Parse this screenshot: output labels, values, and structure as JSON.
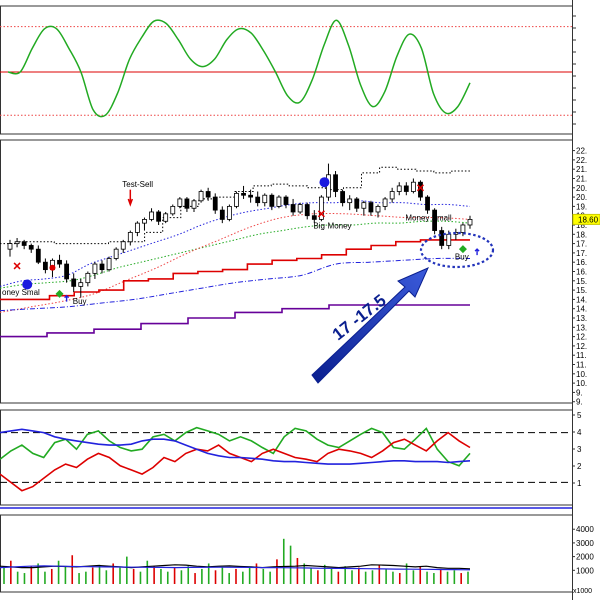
{
  "chart_data": [
    {
      "panel": "oscillator",
      "type": "line",
      "series": [
        {
          "values": [
            50,
            50,
            72,
            90,
            90,
            72,
            50,
            15,
            10,
            30,
            62,
            82,
            97,
            95,
            80,
            62,
            55,
            62,
            80,
            90,
            86,
            70,
            50,
            28,
            22,
            42,
            75,
            98,
            75,
            38,
            18,
            32,
            65,
            85,
            72,
            30,
            12,
            18,
            40
          ],
          "color": "#22aa22"
        }
      ],
      "levels": {
        "upper": 92,
        "middle": 50,
        "lower": 10
      },
      "colors": {
        "upper": "#ee4444",
        "middle": "#dd0000",
        "lower": "#ee4444"
      }
    },
    {
      "panel": "price",
      "type": "candlestick",
      "y_ticks": [
        "22.",
        "22.",
        "21.",
        "21.",
        "20.",
        "20.",
        "19.",
        "19.",
        "18.",
        "18.",
        "17.",
        "17.",
        "16.",
        "16.",
        "15.",
        "15.",
        "14.",
        "14.",
        "13.",
        "13.",
        "12.",
        "12.",
        "11.",
        "11.",
        "10.",
        "10.",
        "9.",
        "9."
      ],
      "last_price_label": "18.60",
      "last_price": 18.6,
      "candles": [
        [
          17.0,
          17.5,
          16.6,
          17.3
        ],
        [
          17.3,
          17.6,
          17.1,
          17.4
        ],
        [
          17.4,
          17.5,
          17.0,
          17.2
        ],
        [
          17.2,
          17.3,
          16.8,
          17.0
        ],
        [
          17.0,
          17.2,
          16.2,
          16.3
        ],
        [
          16.3,
          16.5,
          15.7,
          15.9
        ],
        [
          15.9,
          16.5,
          15.5,
          16.4
        ],
        [
          16.4,
          16.7,
          16.0,
          16.2
        ],
        [
          16.2,
          16.4,
          15.2,
          15.4
        ],
        [
          15.4,
          15.7,
          14.7,
          15.0
        ],
        [
          15.0,
          15.4,
          14.4,
          15.2
        ],
        [
          15.2,
          15.8,
          15.0,
          15.7
        ],
        [
          15.7,
          16.3,
          15.4,
          16.2
        ],
        [
          16.2,
          16.4,
          15.7,
          15.9
        ],
        [
          15.9,
          16.6,
          15.8,
          16.5
        ],
        [
          16.5,
          17.1,
          16.4,
          17.0
        ],
        [
          17.0,
          17.5,
          16.8,
          17.4
        ],
        [
          17.4,
          18.0,
          17.2,
          17.9
        ],
        [
          17.9,
          18.5,
          17.7,
          18.4
        ],
        [
          18.4,
          18.7,
          18.0,
          18.6
        ],
        [
          18.6,
          19.2,
          18.5,
          19.0
        ],
        [
          19.0,
          19.1,
          18.3,
          18.5
        ],
        [
          18.5,
          19.0,
          18.4,
          18.9
        ],
        [
          18.9,
          19.4,
          18.8,
          19.3
        ],
        [
          19.3,
          19.8,
          19.2,
          19.7
        ],
        [
          19.7,
          19.8,
          19.0,
          19.2
        ],
        [
          19.2,
          19.7,
          19.0,
          19.6
        ],
        [
          19.6,
          20.2,
          19.5,
          20.1
        ],
        [
          20.1,
          20.3,
          19.6,
          19.8
        ],
        [
          19.8,
          20.0,
          18.9,
          19.1
        ],
        [
          19.1,
          19.3,
          18.4,
          18.6
        ],
        [
          18.6,
          19.4,
          18.5,
          19.3
        ],
        [
          19.3,
          20.1,
          19.2,
          20.0
        ],
        [
          20.0,
          20.4,
          19.7,
          19.9
        ],
        [
          19.9,
          20.2,
          19.5,
          19.8
        ],
        [
          19.8,
          20.1,
          19.3,
          19.5
        ],
        [
          19.5,
          20.0,
          19.3,
          19.9
        ],
        [
          19.9,
          20.0,
          19.1,
          19.3
        ],
        [
          19.3,
          19.9,
          19.2,
          19.8
        ],
        [
          19.8,
          19.9,
          19.2,
          19.4
        ],
        [
          19.4,
          19.7,
          18.8,
          19.0
        ],
        [
          19.0,
          19.5,
          18.9,
          19.4
        ],
        [
          19.4,
          19.5,
          18.6,
          18.8
        ],
        [
          18.8,
          19.1,
          18.4,
          18.6
        ],
        [
          18.6,
          19.9,
          18.5,
          19.8
        ],
        [
          19.8,
          21.6,
          19.6,
          21.0
        ],
        [
          21.0,
          21.2,
          19.8,
          20.1
        ],
        [
          20.1,
          20.2,
          19.3,
          19.5
        ],
        [
          19.5,
          19.9,
          19.1,
          19.7
        ],
        [
          19.7,
          19.8,
          19.0,
          19.2
        ],
        [
          19.2,
          19.6,
          18.8,
          19.5
        ],
        [
          19.5,
          19.6,
          18.8,
          19.0
        ],
        [
          19.0,
          19.4,
          18.7,
          19.3
        ],
        [
          19.3,
          19.8,
          19.1,
          19.7
        ],
        [
          19.7,
          20.3,
          19.5,
          20.1
        ],
        [
          20.1,
          20.6,
          19.9,
          20.4
        ],
        [
          20.4,
          20.6,
          19.9,
          20.1
        ],
        [
          20.1,
          20.8,
          20.0,
          20.6
        ],
        [
          20.6,
          20.7,
          19.6,
          19.8
        ],
        [
          19.8,
          19.9,
          18.9,
          19.1
        ],
        [
          19.1,
          19.2,
          17.8,
          18.0
        ],
        [
          18.0,
          18.2,
          17.0,
          17.2
        ],
        [
          17.2,
          18.0,
          17.0,
          17.8
        ],
        [
          17.8,
          18.1,
          17.5,
          17.9
        ],
        [
          17.9,
          18.4,
          17.7,
          18.3
        ],
        [
          18.3,
          18.8,
          18.1,
          18.6
        ]
      ],
      "overlays": [
        {
          "name": "upper_band",
          "style": "dotted",
          "color": "#000000",
          "values": [
            17.3,
            17.4,
            17.4,
            17.3,
            17.3,
            17.3,
            17.4,
            17.4,
            17.9,
            18.7,
            19.3,
            19.7,
            19.8,
            20.1,
            20.4,
            20.5,
            20.4,
            20.3,
            20.2,
            20.3,
            21.1,
            21.4,
            21.3,
            21.2,
            21.1,
            21.2,
            21.3
          ]
        },
        {
          "name": "blue_ma",
          "style": "dotted",
          "color": "#2222dd",
          "values": [
            15.0,
            15.3,
            15.4,
            15.6,
            16.2,
            16.6,
            17.0,
            17.4,
            17.8,
            18.3,
            18.7,
            19.0,
            19.2,
            19.4,
            19.5,
            19.5,
            19.6,
            19.5,
            19.5,
            19.4,
            19.4,
            19.3
          ]
        },
        {
          "name": "green_ma",
          "style": "dotted",
          "color": "#22aa22",
          "values": [
            14.9,
            15.1,
            15.2,
            15.3,
            15.6,
            16.0,
            16.3,
            16.6,
            16.9,
            17.2,
            17.5,
            17.8,
            18.0,
            18.2,
            18.3,
            18.3,
            18.4,
            18.4,
            18.5,
            18.5,
            18.4
          ]
        },
        {
          "name": "red_dotted",
          "style": "dotted",
          "color": "#ee4444",
          "values": [
            13.6,
            13.9,
            14.2,
            14.6,
            15.3,
            16.0,
            16.8,
            17.5,
            18.2,
            18.7,
            18.9,
            18.9,
            18.8,
            18.7,
            18.7,
            18.6
          ]
        },
        {
          "name": "red_support",
          "style": "solid",
          "color": "#dd0000",
          "values": [
            14.3,
            14.3,
            14.5,
            14.7,
            14.8,
            15.3,
            15.4,
            15.7,
            15.8,
            15.9,
            16.2,
            16.4,
            16.5,
            16.7,
            17.0,
            17.2,
            17.4,
            17.5,
            17.5,
            17.5
          ]
        },
        {
          "name": "blue_dashdot",
          "style": "dashdot",
          "color": "#2222dd",
          "values": [
            13.7,
            13.8,
            13.9,
            14.1,
            14.3,
            14.6,
            14.9,
            15.2,
            15.4,
            15.6,
            16.2,
            16.3,
            16.4,
            16.5,
            16.5
          ]
        },
        {
          "name": "purple",
          "style": "solid",
          "color": "#660099",
          "values": [
            12.3,
            12.5,
            12.7,
            13.0,
            13.3,
            13.6,
            13.8,
            14.0,
            14.0,
            14.0,
            14.0
          ]
        }
      ],
      "annotations": [
        {
          "text": "Test-Sell",
          "at": 17,
          "price": 20.35
        },
        {
          "text": "Buy",
          "at": 10,
          "price": 14.05
        },
        {
          "text": "oney Smal",
          "at": 0,
          "price": 14.55
        },
        {
          "text": "Big",
          "at": 44,
          "price": 18.1
        },
        {
          "text": "Money",
          "at": 46,
          "price": 18.1
        },
        {
          "text": "Money Small",
          "at": 57,
          "price": 18.55
        },
        {
          "text": "Buy",
          "at": 64,
          "price": 16.45
        }
      ],
      "target_label": "17 -17.5"
    },
    {
      "panel": "indicator",
      "type": "line",
      "series": [
        {
          "color": "#22aa22",
          "values": [
            48,
            58,
            65,
            55,
            50,
            68,
            72,
            60,
            78,
            82,
            70,
            62,
            58,
            60,
            75,
            78,
            70,
            80,
            86,
            82,
            78,
            70,
            75,
            70,
            62,
            55,
            75,
            85,
            82,
            72,
            65,
            62,
            70,
            78,
            85,
            80,
            62,
            60,
            72,
            85,
            60,
            45,
            40,
            55
          ]
        },
        {
          "color": "#dd0000",
          "values": [
            30,
            20,
            10,
            15,
            25,
            35,
            42,
            38,
            48,
            55,
            50,
            40,
            35,
            30,
            38,
            50,
            45,
            55,
            60,
            58,
            65,
            55,
            50,
            45,
            55,
            60,
            55,
            50,
            48,
            45,
            55,
            60,
            58,
            55,
            50,
            58,
            68,
            72,
            65,
            58,
            70,
            80,
            70,
            62
          ]
        },
        {
          "color": "#2222dd",
          "values": [
            80,
            82,
            84,
            82,
            80,
            75,
            72,
            70,
            68,
            66,
            65,
            65,
            66,
            70,
            72,
            72,
            70,
            65,
            60,
            55,
            52,
            50,
            50,
            49,
            48,
            46,
            45,
            45,
            44,
            43,
            42,
            42,
            42,
            43,
            44,
            45,
            46,
            46,
            45,
            45,
            45,
            44,
            45,
            46
          ]
        }
      ],
      "levels": [
        80,
        20
      ],
      "y_ticks": [
        "5",
        "4",
        "3",
        "2",
        "1"
      ]
    },
    {
      "panel": "volume",
      "type": "bar",
      "y_ticks": [
        "4000",
        "3000",
        "2000",
        "1000"
      ],
      "multiplier": "x1000",
      "values": [
        1200,
        1700,
        900,
        800,
        1300,
        1500,
        900,
        1100,
        1700,
        1300,
        2100,
        800,
        900,
        1200,
        1400,
        1000,
        1500,
        1200,
        2000,
        1100,
        900,
        1700,
        1300,
        1100,
        900,
        1200,
        1000,
        1300,
        800,
        1100,
        1500,
        1000,
        1200,
        800,
        1100,
        900,
        1200,
        1500,
        1100,
        900,
        1800,
        3300,
        2800,
        1900,
        1500,
        1200,
        1000,
        1400,
        1100,
        900,
        1300,
        1000,
        1200,
        900,
        1000,
        1400,
        1100,
        900,
        800,
        1500,
        1000,
        1300,
        900,
        800,
        1100,
        900,
        1000,
        800,
        900
      ],
      "ma_series": [
        {
          "color": "#000000",
          "values": [
            1300,
            1250,
            1200,
            1200,
            1250,
            1300,
            1280,
            1250,
            1300,
            1350,
            1300,
            1250,
            1200,
            1250,
            1300,
            1350,
            1400,
            1380,
            1300,
            1250,
            1300,
            1320,
            1280,
            1250,
            1200,
            1250,
            1280,
            1300,
            1350,
            1300,
            1250,
            1200,
            1250,
            1300,
            1400,
            1380,
            1350,
            1300,
            1250,
            1300,
            1200,
            1150,
            1150,
            1100
          ]
        },
        {
          "color": "#2222dd",
          "values": [
            1200,
            1250,
            1300,
            1320,
            1300,
            1280,
            1260,
            1250,
            1240,
            1230,
            1220,
            1210,
            1200,
            1210,
            1220,
            1230,
            1220,
            1210,
            1200,
            1190,
            1180,
            1170,
            1150,
            1140,
            1130,
            1120,
            1100,
            1090,
            1080,
            1070,
            1060,
            1050,
            1040
          ]
        }
      ],
      "colors": {
        "up": "#22aa22",
        "down": "#dd0000"
      }
    }
  ]
}
